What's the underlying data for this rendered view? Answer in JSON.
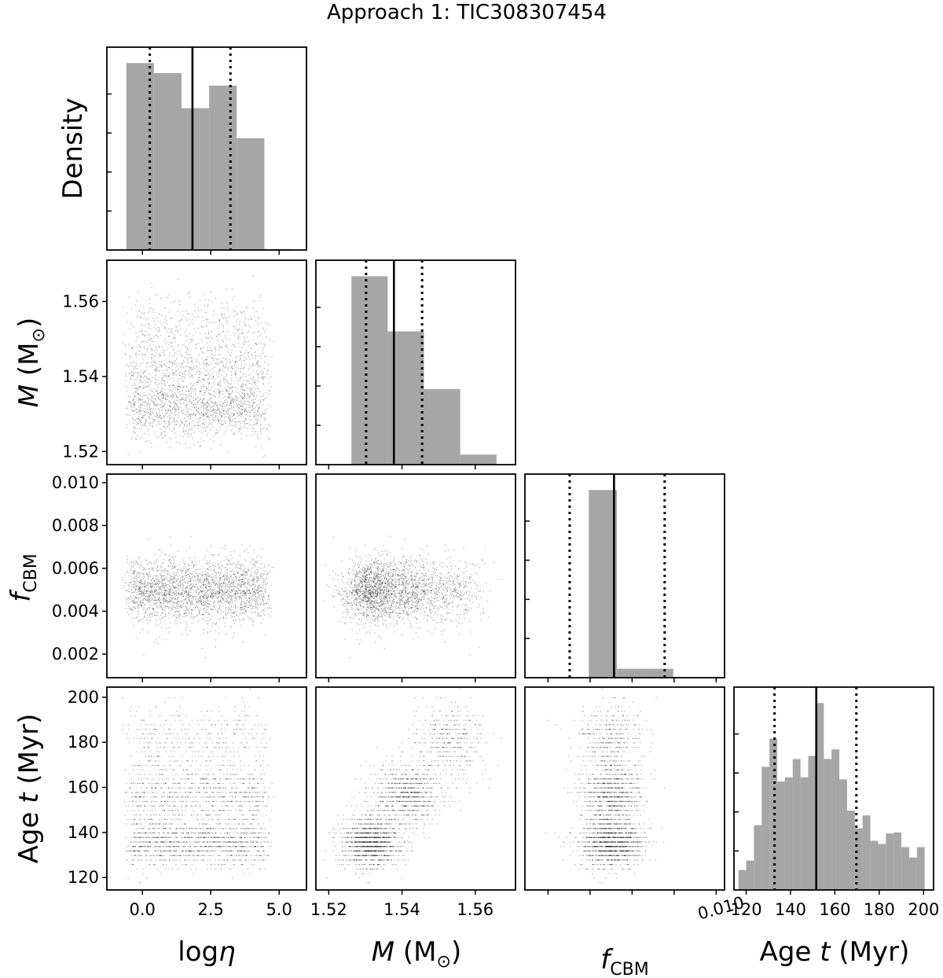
{
  "title": "Approach 1: TIC308307454",
  "chart_data": {
    "type": "corner",
    "title": "Approach 1: TIC308307454",
    "parameters": [
      {
        "id": "logeta",
        "xlabel_base": "log",
        "xlabel_sym": "η",
        "range": [
          -1.3,
          6.0
        ],
        "ticks": [
          0.0,
          2.5,
          5.0
        ],
        "tick_labels": [
          "0.0",
          "2.5",
          "5.0"
        ],
        "hist": {
          "edges": [
            -0.59,
            0.42,
            1.43,
            2.44,
            3.45,
            4.46,
            5.47
          ],
          "density": [
            0.2396,
            0.2268,
            0.1818,
            0.2107,
            0.1433,
            0.0012
          ],
          "q16": 0.27,
          "median": 1.83,
          "q84": 3.22
        }
      },
      {
        "id": "mass",
        "xlabel_sym": "M",
        "xlabel_unit": " (M",
        "xlabel_unit_sub": "⊙",
        "xlabel_close": ")",
        "ylabel": "M (M⊙)",
        "range": [
          1.5165,
          1.571
        ],
        "ticks": [
          1.52,
          1.54,
          1.56
        ],
        "tick_labels": [
          "1.52",
          "1.54",
          "1.56"
        ],
        "hist": {
          "edges": [
            1.5262,
            1.5361,
            1.546,
            1.5559,
            1.5658
          ],
          "density": [
            0.2396,
            0.1695,
            0.096,
            0.0128
          ],
          "q16": 1.5302,
          "median": 1.5378,
          "q84": 1.5455
        }
      },
      {
        "id": "fcbm",
        "xlabel_sym": "f",
        "xlabel_sub": "CBM",
        "range": [
          0.0009,
          0.0104
        ],
        "ticks": [
          0.002,
          0.004,
          0.006,
          0.008,
          0.01
        ],
        "tick_labels": [
          "0.002",
          "0.004",
          "0.006",
          "0.008",
          "0.010"
        ],
        "hist": {
          "edges": [
            0.00394,
            0.00528,
            0.00662,
            0.00796,
            0.0093
          ],
          "density": [
            0.2396,
            0.0114,
            0.0114,
            0.0
          ],
          "q16": 0.00303,
          "median": 0.00514,
          "q84": 0.00755
        }
      },
      {
        "id": "age",
        "xlabel_base": "Age ",
        "xlabel_sym": "t",
        "xlabel_unit": " (Myr)",
        "ylabel": "Age t (Myr)",
        "range": [
          114.5,
          204.5
        ],
        "ticks": [
          120,
          140,
          160,
          180,
          200
        ],
        "tick_labels": [
          "120",
          "140",
          "160",
          "180",
          "200"
        ],
        "hist": {
          "edges": [
            116.5,
            120.0,
            123.5,
            127.0,
            130.5,
            134.0,
            137.5,
            141.0,
            144.5,
            148.0,
            151.5,
            155.0,
            158.5,
            162.0,
            165.5,
            169.0,
            172.5,
            176.0,
            179.5,
            183.0,
            186.5,
            190.0,
            193.5,
            197.0,
            200.5
          ],
          "density": [
            0.0255,
            0.0376,
            0.083,
            0.1578,
            0.194,
            0.139,
            0.1443,
            0.1678,
            0.1444,
            0.1718,
            0.2396,
            0.168,
            0.1802,
            0.1418,
            0.1018,
            0.079,
            0.0956,
            0.063,
            0.059,
            0.0724,
            0.0737,
            0.0549,
            0.0415,
            0.0549
          ],
          "q16": 132.8,
          "median": 151.6,
          "q84": 169.7
        }
      }
    ],
    "y_ticks_diag": [
      0.05,
      0.1,
      0.15,
      0.2
    ],
    "diag_ylim": [
      0,
      0.26
    ],
    "ylabel_top": "Density",
    "ylabel_fcbm_sym": "f",
    "ylabel_fcbm_sub": "CBM",
    "scatter_model": {
      "n_points": 2600,
      "mass_components": [
        {
          "weight": 0.5,
          "mean": 1.5315,
          "sd": 0.0042,
          "age_mean": 136.0,
          "age_sd": 5.5
        },
        {
          "weight": 0.32,
          "mean": 1.541,
          "sd": 0.0048,
          "age_mean": 157.0,
          "age_sd": 6.5
        },
        {
          "weight": 0.18,
          "mean": 1.553,
          "sd": 0.0052,
          "age_mean": 180.0,
          "age_sd": 9.0
        }
      ],
      "logeta_range": [
        -0.5,
        4.5
      ],
      "fcbm_mean": 0.005,
      "fcbm_sd": 0.00075,
      "age_grid": 2.0
    }
  }
}
